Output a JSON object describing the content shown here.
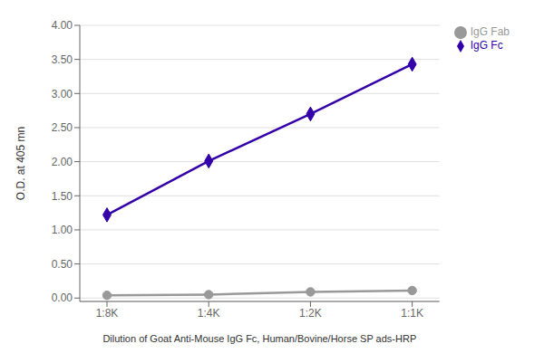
{
  "chart_data": {
    "type": "line",
    "categories": [
      "1:8K",
      "1:4K",
      "1:2K",
      "1:1K"
    ],
    "series": [
      {
        "name": "IgG Fc",
        "color": "#3300AA",
        "marker": "diamond",
        "values": [
          1.22,
          2.01,
          2.7,
          3.43
        ]
      },
      {
        "name": "IgG Fab",
        "color": "#999999",
        "marker": "circle",
        "values": [
          0.04,
          0.05,
          0.09,
          0.11
        ]
      }
    ],
    "x_label": "Dilution of Goat Anti-Mouse IgG Fc, Human/Bovine/Horse SP ads-HRP",
    "y_label": "O.D. at 405 mn",
    "ylim": [
      -0.05,
      4.0
    ],
    "yticks": [
      {
        "value": 0,
        "label": "0.00"
      },
      {
        "value": 0.5,
        "label": "0.50"
      },
      {
        "value": 1,
        "label": "1.00"
      },
      {
        "value": 1.5,
        "label": "1.50"
      },
      {
        "value": 2,
        "label": "2.00"
      },
      {
        "value": 2.5,
        "label": "2.50"
      },
      {
        "value": 3,
        "label": "3.00"
      },
      {
        "value": 3.5,
        "label": "3.50"
      },
      {
        "value": 4,
        "label": "4.00"
      }
    ],
    "grid": "y",
    "legend": "right"
  }
}
